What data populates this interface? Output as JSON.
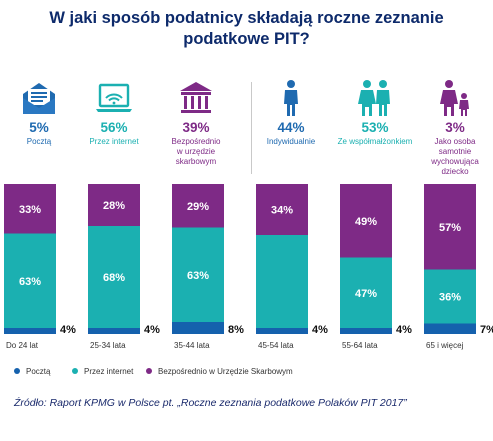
{
  "title": {
    "line1": "W jaki sposób podatnicy składają roczne zeznanie",
    "line2": "podatkowe PIT?"
  },
  "stats": [
    {
      "icon": "envelope-icon",
      "value": "5%",
      "label": [
        "Pocztą"
      ],
      "color": "#1f6ab0"
    },
    {
      "icon": "laptop-wifi-icon",
      "value": "56%",
      "label": [
        "Przez internet"
      ],
      "color": "#1bb0b1"
    },
    {
      "icon": "tax-office-building-icon",
      "value": "39%",
      "label": [
        "Bezpośrednio",
        "w urzędzie",
        "skarbowym"
      ],
      "color": "#7e2a86"
    },
    {
      "icon": "single-person-icon",
      "value": "44%",
      "label": [
        "Indywidualnie"
      ],
      "color": "#1f6ab0"
    },
    {
      "icon": "couple-icon",
      "value": "53%",
      "label": [
        "Ze współmałżonkiem"
      ],
      "color": "#1bb0b1"
    },
    {
      "icon": "parent-child-icon",
      "value": "3%",
      "label": [
        "Jako osoba",
        "samotnie",
        "wychowująca",
        "dziecko"
      ],
      "color": "#7e2a86"
    }
  ],
  "colors": {
    "poczta": "#1561ad",
    "internet": "#1bb0b1",
    "urzad": "#7e2a86",
    "title": "#0d2a6b",
    "source": "#1a2a6c"
  },
  "chart_data": {
    "type": "bar",
    "stacked": true,
    "categories": [
      "Do 24 lat",
      "25-34 lata",
      "35-44 lata",
      "45-54 lata",
      "55-64 lata",
      "65 i więcej"
    ],
    "series": [
      {
        "name": "Pocztą",
        "values": [
          4,
          4,
          8,
          4,
          4,
          7
        ],
        "labels": [
          "4%",
          "4%",
          "8%",
          "4%",
          "4%",
          "7%"
        ]
      },
      {
        "name": "Przez internet",
        "values": [
          63,
          68,
          63,
          62,
          47,
          36
        ],
        "labels": [
          "63%",
          "68%",
          "63%",
          "",
          "47%",
          "36%"
        ]
      },
      {
        "name": "Bezpośrednio w Urzędzie Skarbowym",
        "values": [
          33,
          28,
          29,
          34,
          49,
          57
        ],
        "labels": [
          "33%",
          "28%",
          "29%",
          "34%",
          "49%",
          "57%"
        ]
      }
    ],
    "ylim": [
      0,
      100
    ]
  },
  "source": "Źródło: Raport KPMG w Polsce pt. „Roczne zeznania podatkowe Polaków PIT 2017”"
}
